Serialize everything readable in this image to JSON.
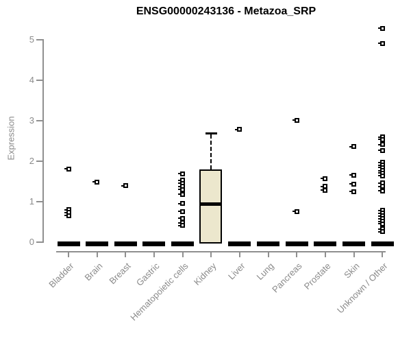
{
  "chart_data": {
    "type": "box",
    "title": "ENSG00000243136 - Metazoa_SRP",
    "ylabel": "Expression",
    "xlabel": "",
    "ylim": [
      0,
      5.45
    ],
    "yticks": [
      "0",
      "1",
      "2",
      "3",
      "4",
      "5"
    ],
    "grid": false,
    "legend": "none",
    "colors": {
      "box_fill": "#ECE7CD",
      "box_line": "#000000",
      "axis": "#8F8F8F",
      "tick_text": "#8A8A8A",
      "title_text": "#000000"
    },
    "categories": [
      "Bladder",
      "Brain",
      "Breast",
      "Gastric",
      "Hematopoietic cells",
      "Kidney",
      "Liver",
      "Lung",
      "Pancreas",
      "Prostate",
      "Skin",
      "Unknown / Other"
    ],
    "boxes": [
      {
        "label": "Bladder",
        "q1": 0,
        "median": 0,
        "q3": 0,
        "whisker_low": 0,
        "whisker_high": 0,
        "outliers": [
          1.81,
          0.8,
          0.73,
          0.66
        ]
      },
      {
        "label": "Brain",
        "q1": 0,
        "median": 0,
        "q3": 0,
        "whisker_low": 0,
        "whisker_high": 0,
        "outliers": [
          1.49
        ]
      },
      {
        "label": "Breast",
        "q1": 0,
        "median": 0,
        "q3": 0,
        "whisker_low": 0,
        "whisker_high": 0,
        "outliers": [
          1.39
        ]
      },
      {
        "label": "Gastric",
        "q1": 0,
        "median": 0,
        "q3": 0,
        "whisker_low": 0,
        "whisker_high": 0,
        "outliers": []
      },
      {
        "label": "Hematopoietic cells",
        "q1": 0,
        "median": 0,
        "q3": 0,
        "whisker_low": 0,
        "whisker_high": 0,
        "outliers": [
          1.69,
          1.53,
          1.45,
          1.38,
          1.3,
          1.18,
          0.95,
          0.76,
          0.59,
          0.48,
          0.41
        ]
      },
      {
        "label": "Kidney",
        "q1": 0,
        "median": 0.95,
        "q3": 1.8,
        "whisker_low": 0,
        "whisker_high": 2.7,
        "outliers": []
      },
      {
        "label": "Liver",
        "q1": 0,
        "median": 0,
        "q3": 0,
        "whisker_low": 0,
        "whisker_high": 0,
        "outliers": [
          2.78
        ]
      },
      {
        "label": "Lung",
        "q1": 0,
        "median": 0,
        "q3": 0,
        "whisker_low": 0,
        "whisker_high": 0,
        "outliers": []
      },
      {
        "label": "Pancreas",
        "q1": 0,
        "median": 0,
        "q3": 0,
        "whisker_low": 0,
        "whisker_high": 0,
        "outliers": [
          3.01,
          0.76
        ]
      },
      {
        "label": "Prostate",
        "q1": 0,
        "median": 0,
        "q3": 0,
        "whisker_low": 0,
        "whisker_high": 0,
        "outliers": [
          1.57,
          1.38,
          1.28
        ]
      },
      {
        "label": "Skin",
        "q1": 0,
        "median": 0,
        "q3": 0,
        "whisker_low": 0,
        "whisker_high": 0,
        "outliers": [
          2.36,
          1.66,
          1.44,
          1.25
        ]
      },
      {
        "label": "Unknown / Other",
        "q1": 0,
        "median": 0,
        "q3": 0,
        "whisker_low": 0,
        "whisker_high": 0,
        "outliers": [
          5.28,
          4.91,
          2.6,
          2.54,
          2.41,
          2.27,
          1.97,
          1.9,
          1.84,
          1.77,
          1.71,
          1.64,
          1.46,
          1.38,
          1.27,
          0.78,
          0.72,
          0.65,
          0.58,
          0.51,
          0.45,
          0.33,
          0.26
        ]
      }
    ]
  }
}
